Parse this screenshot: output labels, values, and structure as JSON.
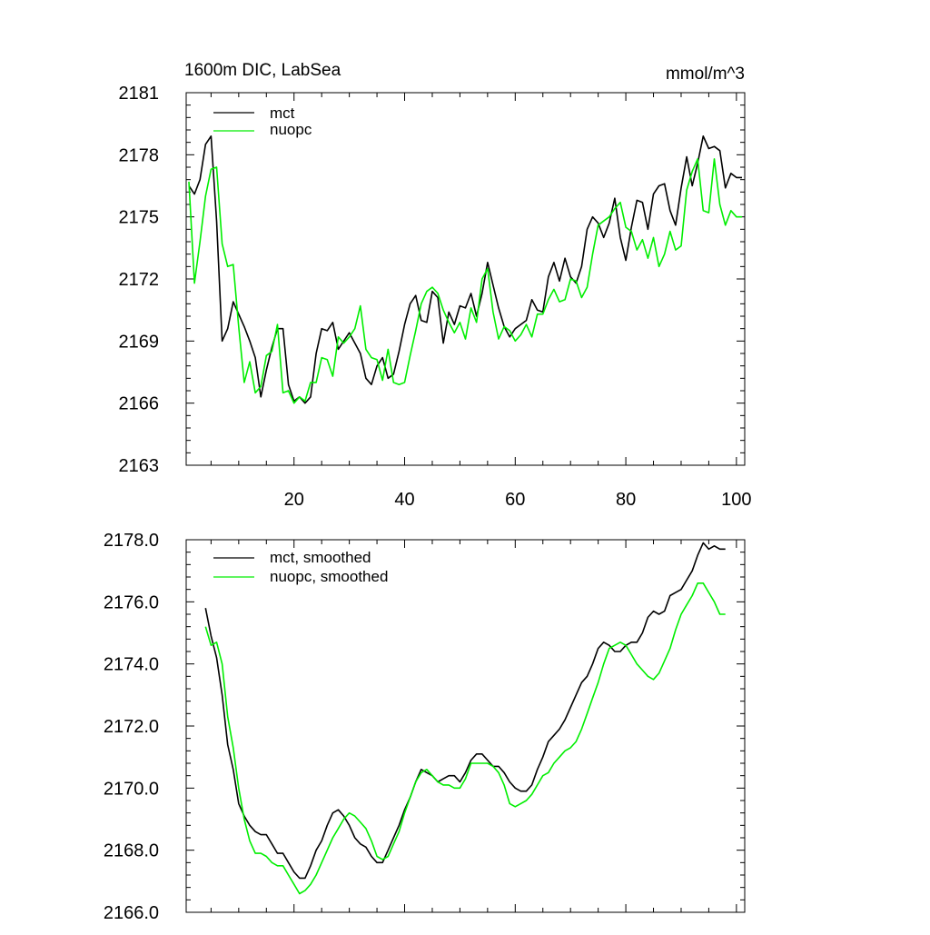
{
  "chart_data": [
    {
      "type": "line",
      "title": "1600m DIC, LabSea",
      "units": "mmol/m^3",
      "xlim": [
        0.5,
        101.5
      ],
      "ylim": [
        2163,
        2181
      ],
      "xticks": [
        20,
        40,
        60,
        80,
        100
      ],
      "yticks": [
        2163,
        2166,
        2169,
        2172,
        2175,
        2178,
        2181
      ],
      "xtick_labels": [
        "20",
        "40",
        "60",
        "80",
        "100"
      ],
      "ytick_labels": [
        "2163",
        "2166",
        "2169",
        "2172",
        "2175",
        "2178",
        "2181"
      ],
      "legend_position": "top-left",
      "series": [
        {
          "name": "mct",
          "color": "#000000",
          "x": [
            1,
            2,
            3,
            4,
            5,
            6,
            7,
            8,
            9,
            10,
            11,
            12,
            13,
            14,
            15,
            16,
            17,
            18,
            19,
            20,
            21,
            22,
            23,
            24,
            25,
            26,
            27,
            28,
            29,
            30,
            31,
            32,
            33,
            34,
            35,
            36,
            37,
            38,
            39,
            40,
            41,
            42,
            43,
            44,
            45,
            46,
            47,
            48,
            49,
            50,
            51,
            52,
            53,
            54,
            55,
            56,
            57,
            58,
            59,
            60,
            61,
            62,
            63,
            64,
            65,
            66,
            67,
            68,
            69,
            70,
            71,
            72,
            73,
            74,
            75,
            76,
            77,
            78,
            79,
            80,
            81,
            82,
            83,
            84,
            85,
            86,
            87,
            88,
            89,
            90,
            91,
            92,
            93,
            94,
            95,
            96,
            97,
            98,
            99,
            100,
            101
          ],
          "values": [
            2176.5,
            2176.1,
            2176.8,
            2178.5,
            2178.9,
            2174.8,
            2169.0,
            2169.6,
            2170.9,
            2170.3,
            2169.7,
            2169.0,
            2168.2,
            2166.3,
            2167.6,
            2168.7,
            2169.6,
            2169.6,
            2166.9,
            2166.1,
            2166.3,
            2166.0,
            2166.3,
            2168.4,
            2169.6,
            2169.5,
            2169.9,
            2168.6,
            2169.0,
            2169.4,
            2168.9,
            2168.4,
            2167.2,
            2166.9,
            2167.8,
            2168.2,
            2167.2,
            2167.4,
            2168.5,
            2169.8,
            2170.8,
            2171.2,
            2170.0,
            2169.9,
            2171.4,
            2171.1,
            2168.9,
            2170.4,
            2169.8,
            2170.7,
            2170.6,
            2171.3,
            2170.2,
            2171.3,
            2172.8,
            2171.7,
            2170.6,
            2169.7,
            2169.2,
            2169.6,
            2169.8,
            2170.0,
            2171.0,
            2170.5,
            2170.4,
            2172.1,
            2172.8,
            2171.9,
            2173.0,
            2172.1,
            2171.8,
            2172.6,
            2174.4,
            2175.0,
            2174.7,
            2174.0,
            2174.7,
            2175.9,
            2174.0,
            2172.9,
            2174.5,
            2175.8,
            2175.7,
            2174.4,
            2176.1,
            2176.5,
            2176.6,
            2175.3,
            2174.6,
            2176.4,
            2177.9,
            2176.5,
            2177.6,
            2178.9,
            2178.3,
            2178.4,
            2178.2,
            2176.4,
            2177.1,
            2176.9,
            2176.9
          ]
        },
        {
          "name": "nuopc",
          "color": "#00ee00",
          "x": [
            1,
            2,
            3,
            4,
            5,
            6,
            7,
            8,
            9,
            10,
            11,
            12,
            13,
            14,
            15,
            16,
            17,
            18,
            19,
            20,
            21,
            22,
            23,
            24,
            25,
            26,
            27,
            28,
            29,
            30,
            31,
            32,
            33,
            34,
            35,
            36,
            37,
            38,
            39,
            40,
            41,
            42,
            43,
            44,
            45,
            46,
            47,
            48,
            49,
            50,
            51,
            52,
            53,
            54,
            55,
            56,
            57,
            58,
            59,
            60,
            61,
            62,
            63,
            64,
            65,
            66,
            67,
            68,
            69,
            70,
            71,
            72,
            73,
            74,
            75,
            76,
            77,
            78,
            79,
            80,
            81,
            82,
            83,
            84,
            85,
            86,
            87,
            88,
            89,
            90,
            91,
            92,
            93,
            94,
            95,
            96,
            97,
            98,
            99,
            100,
            101
          ],
          "values": [
            2176.7,
            2171.8,
            2173.8,
            2176.0,
            2177.3,
            2177.4,
            2173.7,
            2172.6,
            2172.7,
            2169.7,
            2167.0,
            2168.0,
            2166.5,
            2166.8,
            2168.3,
            2168.5,
            2169.8,
            2166.5,
            2166.6,
            2166.0,
            2166.3,
            2166.1,
            2167.0,
            2167.0,
            2168.2,
            2168.1,
            2167.3,
            2169.2,
            2168.9,
            2169.2,
            2169.6,
            2170.7,
            2168.6,
            2168.2,
            2168.1,
            2167.1,
            2168.6,
            2167.0,
            2166.9,
            2167.0,
            2168.3,
            2169.5,
            2170.8,
            2171.4,
            2171.6,
            2171.3,
            2170.5,
            2169.9,
            2169.4,
            2169.9,
            2169.1,
            2170.6,
            2169.9,
            2172.0,
            2172.5,
            2170.4,
            2169.1,
            2169.7,
            2169.5,
            2169.0,
            2169.3,
            2169.8,
            2169.2,
            2170.3,
            2170.3,
            2171.0,
            2171.5,
            2170.9,
            2171.0,
            2172.0,
            2171.9,
            2171.1,
            2171.6,
            2173.2,
            2174.6,
            2174.8,
            2175.0,
            2175.4,
            2175.7,
            2174.5,
            2174.3,
            2173.4,
            2173.9,
            2173.0,
            2174.0,
            2172.6,
            2173.2,
            2174.3,
            2173.4,
            2173.6,
            2176.3,
            2177.2,
            2177.8,
            2175.3,
            2175.2,
            2177.8,
            2175.6,
            2174.6,
            2175.3,
            2175.0,
            2175.0
          ]
        }
      ]
    },
    {
      "type": "line",
      "xlim": [
        0.5,
        101.5
      ],
      "ylim": [
        2166.0,
        2178.0
      ],
      "xticks": [
        20,
        40,
        60,
        80,
        100
      ],
      "yticks": [
        2166.0,
        2168.0,
        2170.0,
        2172.0,
        2174.0,
        2176.0,
        2178.0
      ],
      "ytick_labels": [
        "2166.0",
        "2168.0",
        "2170.0",
        "2172.0",
        "2174.0",
        "2176.0",
        "2178.0"
      ],
      "legend_position": "top-left",
      "series": [
        {
          "name": "mct, smoothed",
          "color": "#000000",
          "x": [
            4,
            5,
            6,
            7,
            8,
            9,
            10,
            11,
            12,
            13,
            14,
            15,
            16,
            17,
            18,
            19,
            20,
            21,
            22,
            23,
            24,
            25,
            26,
            27,
            28,
            29,
            30,
            31,
            32,
            33,
            34,
            35,
            36,
            37,
            38,
            39,
            40,
            41,
            42,
            43,
            44,
            45,
            46,
            47,
            48,
            49,
            50,
            51,
            52,
            53,
            54,
            55,
            56,
            57,
            58,
            59,
            60,
            61,
            62,
            63,
            64,
            65,
            66,
            67,
            68,
            69,
            70,
            71,
            72,
            73,
            74,
            75,
            76,
            77,
            78,
            79,
            80,
            81,
            82,
            83,
            84,
            85,
            86,
            87,
            88,
            89,
            90,
            91,
            92,
            93,
            94,
            95,
            96,
            97,
            98
          ],
          "values": [
            2175.8,
            2174.9,
            2174.2,
            2173.0,
            2171.4,
            2170.6,
            2169.5,
            2169.1,
            2168.8,
            2168.6,
            2168.5,
            2168.5,
            2168.2,
            2167.9,
            2167.9,
            2167.6,
            2167.3,
            2167.1,
            2167.1,
            2167.5,
            2168.0,
            2168.3,
            2168.8,
            2169.2,
            2169.3,
            2169.1,
            2168.8,
            2168.4,
            2168.2,
            2168.1,
            2167.8,
            2167.6,
            2167.6,
            2168.0,
            2168.4,
            2168.8,
            2169.3,
            2169.7,
            2170.2,
            2170.6,
            2170.5,
            2170.4,
            2170.2,
            2170.3,
            2170.4,
            2170.4,
            2170.2,
            2170.5,
            2170.9,
            2171.1,
            2171.1,
            2170.9,
            2170.7,
            2170.7,
            2170.5,
            2170.2,
            2170.0,
            2169.9,
            2169.9,
            2170.1,
            2170.6,
            2171.0,
            2171.5,
            2171.7,
            2171.9,
            2172.2,
            2172.6,
            2173.0,
            2173.4,
            2173.6,
            2174.0,
            2174.5,
            2174.7,
            2174.6,
            2174.4,
            2174.4,
            2174.6,
            2174.7,
            2174.7,
            2175.0,
            2175.5,
            2175.7,
            2175.6,
            2175.7,
            2176.2,
            2176.3,
            2176.4,
            2176.7,
            2177.0,
            2177.5,
            2177.9,
            2177.7,
            2177.8,
            2177.7,
            2177.7
          ]
        },
        {
          "name": "nuopc, smoothed",
          "color": "#00ee00",
          "x": [
            4,
            5,
            6,
            7,
            8,
            9,
            10,
            11,
            12,
            13,
            14,
            15,
            16,
            17,
            18,
            19,
            20,
            21,
            22,
            23,
            24,
            25,
            26,
            27,
            28,
            29,
            30,
            31,
            32,
            33,
            34,
            35,
            36,
            37,
            38,
            39,
            40,
            41,
            42,
            43,
            44,
            45,
            46,
            47,
            48,
            49,
            50,
            51,
            52,
            53,
            54,
            55,
            56,
            57,
            58,
            59,
            60,
            61,
            62,
            63,
            64,
            65,
            66,
            67,
            68,
            69,
            70,
            71,
            72,
            73,
            74,
            75,
            76,
            77,
            78,
            79,
            80,
            81,
            82,
            83,
            84,
            85,
            86,
            87,
            88,
            89,
            90,
            91,
            92,
            93,
            94,
            95,
            96,
            97,
            98
          ],
          "values": [
            2175.2,
            2174.6,
            2174.7,
            2174.0,
            2172.3,
            2171.3,
            2170.0,
            2169.0,
            2168.3,
            2167.9,
            2167.9,
            2167.8,
            2167.6,
            2167.5,
            2167.5,
            2167.2,
            2166.9,
            2166.6,
            2166.7,
            2166.9,
            2167.2,
            2167.6,
            2168.0,
            2168.4,
            2168.7,
            2169.0,
            2169.2,
            2169.1,
            2168.9,
            2168.7,
            2168.3,
            2167.8,
            2167.7,
            2167.8,
            2168.2,
            2168.6,
            2169.2,
            2169.7,
            2170.2,
            2170.5,
            2170.6,
            2170.4,
            2170.2,
            2170.1,
            2170.1,
            2170.0,
            2170.0,
            2170.3,
            2170.8,
            2170.8,
            2170.8,
            2170.8,
            2170.7,
            2170.5,
            2170.1,
            2169.5,
            2169.4,
            2169.5,
            2169.6,
            2169.8,
            2170.1,
            2170.4,
            2170.5,
            2170.8,
            2171.0,
            2171.2,
            2171.3,
            2171.5,
            2171.9,
            2172.4,
            2172.9,
            2173.4,
            2174.0,
            2174.5,
            2174.6,
            2174.7,
            2174.6,
            2174.3,
            2174.0,
            2173.8,
            2173.6,
            2173.5,
            2173.7,
            2174.1,
            2174.5,
            2175.1,
            2175.6,
            2175.9,
            2176.2,
            2176.6,
            2176.6,
            2176.3,
            2176.0,
            2175.6,
            2175.6
          ]
        }
      ]
    }
  ]
}
